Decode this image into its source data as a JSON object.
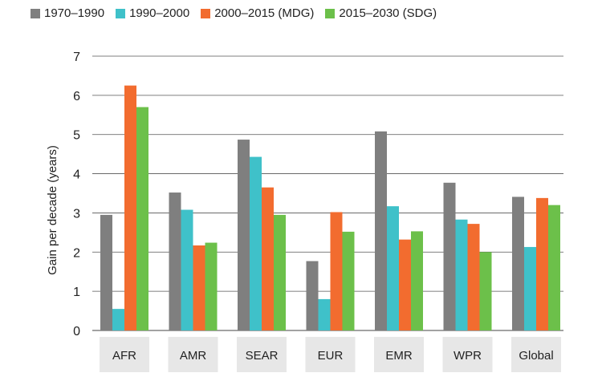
{
  "chart_data": {
    "type": "bar",
    "ylabel": "Gain per decade (years)",
    "ylim": [
      0,
      7
    ],
    "yticks": [
      0,
      1,
      2,
      3,
      4,
      5,
      6,
      7
    ],
    "categories": [
      "AFR",
      "AMR",
      "SEAR",
      "EUR",
      "EMR",
      "WPR",
      "Global"
    ],
    "series": [
      {
        "name": "1970–1990",
        "color": "#7f7f7f",
        "values": [
          2.95,
          3.52,
          4.87,
          1.77,
          5.08,
          3.77,
          3.41
        ]
      },
      {
        "name": "1990–2000",
        "color": "#3fc1c9",
        "values": [
          0.55,
          3.08,
          4.43,
          0.8,
          3.17,
          2.83,
          2.13
        ]
      },
      {
        "name": "2000–2015 (MDG)",
        "color": "#f26c2f",
        "values": [
          6.25,
          2.17,
          3.65,
          3.02,
          2.32,
          2.72,
          3.38
        ]
      },
      {
        "name": "2015–2030 (SDG)",
        "color": "#6cc04a",
        "values": [
          5.7,
          2.24,
          2.95,
          2.52,
          2.53,
          2.0,
          3.2
        ]
      }
    ],
    "grid": true,
    "legend_position": "top-left"
  }
}
